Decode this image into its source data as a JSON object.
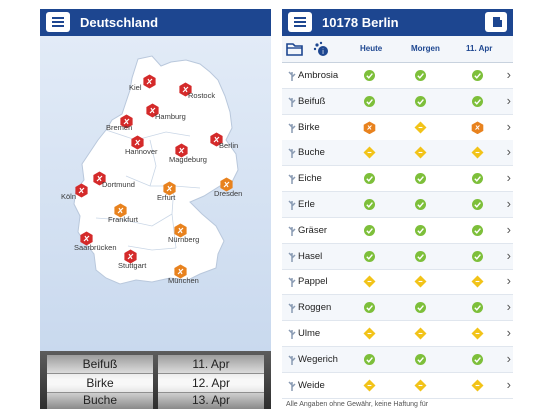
{
  "left": {
    "title": "Deutschland",
    "cities": [
      {
        "name": "Kiel",
        "level": "high"
      },
      {
        "name": "Rostock",
        "level": "high"
      },
      {
        "name": "Hamburg",
        "level": "high"
      },
      {
        "name": "Bremen",
        "level": "high"
      },
      {
        "name": "Berlin",
        "level": "high"
      },
      {
        "name": "Hannover",
        "level": "high"
      },
      {
        "name": "Magdeburg",
        "level": "high"
      },
      {
        "name": "Dortmund",
        "level": "high"
      },
      {
        "name": "Köln",
        "level": "high"
      },
      {
        "name": "Erfurt",
        "level": "medium"
      },
      {
        "name": "Dresden",
        "level": "medium"
      },
      {
        "name": "Frankfurt",
        "level": "medium"
      },
      {
        "name": "Saarbrücken",
        "level": "high"
      },
      {
        "name": "Nürnberg",
        "level": "medium"
      },
      {
        "name": "Stuttgart",
        "level": "high"
      },
      {
        "name": "München",
        "level": "medium"
      }
    ],
    "picker": {
      "plants": [
        "Beifuß",
        "Birke",
        "Buche"
      ],
      "dates": [
        "11. Apr",
        "12. Apr",
        "13. Apr"
      ]
    }
  },
  "right": {
    "title": "10178 Berlin",
    "columns": [
      "Heute",
      "Morgen",
      "11. Apr"
    ],
    "rows": [
      {
        "name": "Ambrosia",
        "levels": [
          "none",
          "none",
          "none"
        ]
      },
      {
        "name": "Beifuß",
        "levels": [
          "none",
          "none",
          "none"
        ]
      },
      {
        "name": "Birke",
        "levels": [
          "high",
          "medium",
          "high"
        ]
      },
      {
        "name": "Buche",
        "levels": [
          "medium",
          "medium",
          "medium"
        ]
      },
      {
        "name": "Eiche",
        "levels": [
          "none",
          "none",
          "none"
        ]
      },
      {
        "name": "Erle",
        "levels": [
          "none",
          "none",
          "none"
        ]
      },
      {
        "name": "Gräser",
        "levels": [
          "none",
          "none",
          "none"
        ]
      },
      {
        "name": "Hasel",
        "levels": [
          "none",
          "none",
          "none"
        ]
      },
      {
        "name": "Pappel",
        "levels": [
          "medium",
          "medium",
          "medium"
        ]
      },
      {
        "name": "Roggen",
        "levels": [
          "none",
          "none",
          "none"
        ]
      },
      {
        "name": "Ulme",
        "levels": [
          "medium",
          "medium",
          "medium"
        ]
      },
      {
        "name": "Wegerich",
        "levels": [
          "none",
          "none",
          "none"
        ]
      },
      {
        "name": "Weide",
        "levels": [
          "medium",
          "medium",
          "medium"
        ]
      }
    ],
    "footer": "Alle Angaben ohne Gewähr, keine Haftung für"
  },
  "colors": {
    "header": "#1d4690",
    "high": "#d42a2a",
    "medium_high": "#e8821e",
    "medium": "#f2c318",
    "none": "#7dbf3a"
  }
}
